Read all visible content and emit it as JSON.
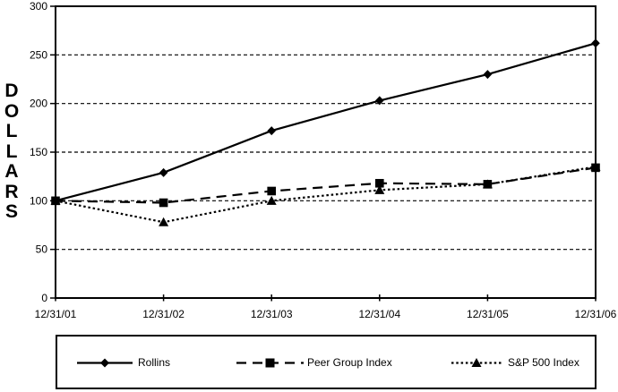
{
  "chart_data": {
    "type": "line",
    "title": "",
    "ylabel": "DOLLARS",
    "x_labels": [
      "12/31/01",
      "12/31/02",
      "12/31/03",
      "12/31/04",
      "12/31/05",
      "12/31/06"
    ],
    "y_ticks": [
      0,
      50,
      100,
      150,
      200,
      250,
      300
    ],
    "ylim": [
      0,
      300
    ],
    "grid": "horizontal dashed gridlines at each y tick",
    "legend_position": "boxed legend centered below plot",
    "series": [
      {
        "name": "Rollins",
        "line": "solid",
        "marker": "diamond",
        "values": [
          100,
          129,
          172,
          203,
          230,
          262
        ]
      },
      {
        "name": "Peer Group Index",
        "line": "dashed",
        "marker": "square",
        "values": [
          100,
          98,
          110,
          118,
          117,
          134
        ]
      },
      {
        "name": "S&P 500 Index",
        "line": "dotted",
        "marker": "triangle",
        "values": [
          100,
          78,
          100,
          111,
          117,
          135
        ]
      }
    ]
  },
  "colors": {
    "foreground": "#000000",
    "background": "#ffffff"
  }
}
